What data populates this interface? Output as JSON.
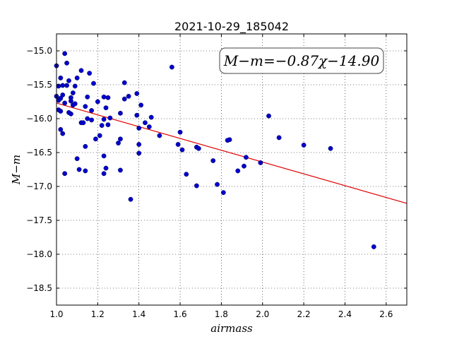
{
  "chart_data": {
    "type": "scatter",
    "title": "2021-10-29_185042",
    "xlabel": "airmass",
    "ylabel": "M−m",
    "xlim": [
      1.0,
      2.7
    ],
    "ylim": [
      -18.75,
      -14.75
    ],
    "x_ticks": [
      1.0,
      1.2,
      1.4,
      1.6,
      1.8,
      2.0,
      2.2,
      2.4,
      2.6
    ],
    "x_tick_labels": [
      "1.0",
      "1.2",
      "1.4",
      "1.6",
      "1.8",
      "2.0",
      "2.2",
      "2.4",
      "2.6"
    ],
    "y_ticks": [
      -15.0,
      -15.5,
      -16.0,
      -16.5,
      -17.0,
      -17.5,
      -18.0,
      -18.5
    ],
    "y_tick_labels": [
      "−15.0",
      "−15.5",
      "−16.0",
      "−16.5",
      "−17.0",
      "−17.5",
      "−18.0",
      "−18.5"
    ],
    "grid": true,
    "annotation": "M−m=−0.87χ−14.90",
    "fit_line": {
      "slope": -0.87,
      "intercept": -14.9,
      "color": "#e00000"
    },
    "point_color": "#0000cc",
    "points": [
      [
        1.0,
        -15.22
      ],
      [
        1.0,
        -15.67
      ],
      [
        1.01,
        -15.52
      ],
      [
        1.01,
        -15.87
      ],
      [
        1.01,
        -15.73
      ],
      [
        1.02,
        -15.4
      ],
      [
        1.02,
        -15.7
      ],
      [
        1.02,
        -15.89
      ],
      [
        1.02,
        -16.16
      ],
      [
        1.03,
        -15.51
      ],
      [
        1.03,
        -15.65
      ],
      [
        1.03,
        -16.22
      ],
      [
        1.04,
        -15.04
      ],
      [
        1.04,
        -15.77
      ],
      [
        1.04,
        -16.81
      ],
      [
        1.05,
        -15.18
      ],
      [
        1.05,
        -15.51
      ],
      [
        1.06,
        -15.44
      ],
      [
        1.06,
        -15.91
      ],
      [
        1.07,
        -15.69
      ],
      [
        1.07,
        -15.74
      ],
      [
        1.07,
        -15.93
      ],
      [
        1.08,
        -15.62
      ],
      [
        1.08,
        -15.8
      ],
      [
        1.09,
        -15.78
      ],
      [
        1.09,
        -15.52
      ],
      [
        1.1,
        -16.59
      ],
      [
        1.1,
        -15.4
      ],
      [
        1.11,
        -16.75
      ],
      [
        1.12,
        -15.29
      ],
      [
        1.12,
        -16.06
      ],
      [
        1.13,
        -16.06
      ],
      [
        1.14,
        -15.82
      ],
      [
        1.14,
        -16.41
      ],
      [
        1.14,
        -16.77
      ],
      [
        1.15,
        -16.0
      ],
      [
        1.15,
        -15.68
      ],
      [
        1.16,
        -15.33
      ],
      [
        1.17,
        -15.88
      ],
      [
        1.17,
        -16.02
      ],
      [
        1.18,
        -15.48
      ],
      [
        1.19,
        -16.3
      ],
      [
        1.2,
        -15.75
      ],
      [
        1.21,
        -16.25
      ],
      [
        1.22,
        -16.1
      ],
      [
        1.23,
        -15.68
      ],
      [
        1.23,
        -16.01
      ],
      [
        1.23,
        -16.55
      ],
      [
        1.23,
        -16.81
      ],
      [
        1.24,
        -16.73
      ],
      [
        1.24,
        -15.84
      ],
      [
        1.25,
        -15.69
      ],
      [
        1.25,
        -16.09
      ],
      [
        1.26,
        -15.99
      ],
      [
        1.3,
        -16.36
      ],
      [
        1.31,
        -15.92
      ],
      [
        1.31,
        -16.3
      ],
      [
        1.31,
        -16.76
      ],
      [
        1.33,
        -15.71
      ],
      [
        1.33,
        -15.47
      ],
      [
        1.35,
        -15.67
      ],
      [
        1.36,
        -17.19
      ],
      [
        1.39,
        -15.63
      ],
      [
        1.39,
        -15.95
      ],
      [
        1.4,
        -16.14
      ],
      [
        1.4,
        -16.38
      ],
      [
        1.4,
        -16.51
      ],
      [
        1.41,
        -15.8
      ],
      [
        1.43,
        -16.06
      ],
      [
        1.45,
        -16.12
      ],
      [
        1.46,
        -15.98
      ],
      [
        1.5,
        -16.25
      ],
      [
        1.56,
        -15.24
      ],
      [
        1.59,
        -16.38
      ],
      [
        1.6,
        -16.2
      ],
      [
        1.61,
        -16.46
      ],
      [
        1.63,
        -16.82
      ],
      [
        1.68,
        -16.42
      ],
      [
        1.68,
        -16.99
      ],
      [
        1.69,
        -16.44
      ],
      [
        1.76,
        -16.62
      ],
      [
        1.78,
        -16.97
      ],
      [
        1.81,
        -17.09
      ],
      [
        1.83,
        -16.32
      ],
      [
        1.84,
        -16.31
      ],
      [
        1.88,
        -16.77
      ],
      [
        1.91,
        -16.7
      ],
      [
        1.92,
        -16.57
      ],
      [
        1.99,
        -16.65
      ],
      [
        2.03,
        -15.96
      ],
      [
        2.08,
        -16.28
      ],
      [
        2.2,
        -16.39
      ],
      [
        2.33,
        -16.44
      ],
      [
        2.54,
        -17.89
      ]
    ]
  }
}
